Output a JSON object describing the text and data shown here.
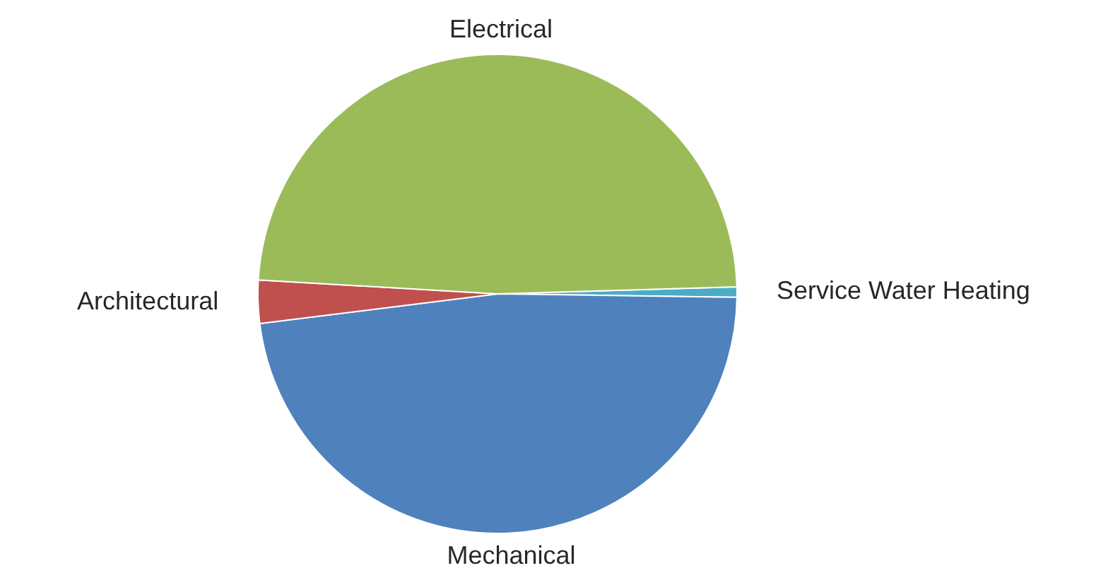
{
  "chart_data": {
    "type": "pie",
    "categories": [
      "Service Water Heating",
      "Mechanical",
      "Architectural",
      "Electrical"
    ],
    "values": [
      0.7,
      47.8,
      2.9,
      48.6
    ],
    "colors": [
      "#4bacc6",
      "#4f81bd",
      "#c0504d",
      "#9bbb59"
    ]
  }
}
